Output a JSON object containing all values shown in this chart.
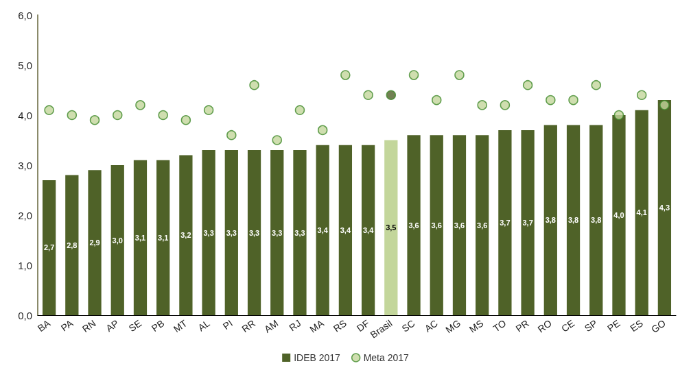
{
  "chart_data": {
    "type": "bar",
    "categories": [
      "BA",
      "PA",
      "RN",
      "AP",
      "SE",
      "PB",
      "MT",
      "AL",
      "PI",
      "RR",
      "AM",
      "RJ",
      "MA",
      "RS",
      "DF",
      "Brasil",
      "SC",
      "AC",
      "MG",
      "MS",
      "TO",
      "PR",
      "RO",
      "CE",
      "SP",
      "PE",
      "ES",
      "GO"
    ],
    "series": [
      {
        "name": "IDEB 2017",
        "color": "#4f6228",
        "colors": [
          "#4f6228",
          "#4f6228",
          "#4f6228",
          "#4f6228",
          "#4f6228",
          "#4f6228",
          "#4f6228",
          "#4f6228",
          "#4f6228",
          "#4f6228",
          "#4f6228",
          "#4f6228",
          "#4f6228",
          "#4f6228",
          "#4f6228",
          "#c3d69b",
          "#4f6228",
          "#4f6228",
          "#4f6228",
          "#4f6228",
          "#4f6228",
          "#4f6228",
          "#4f6228",
          "#4f6228",
          "#4f6228",
          "#4f6228",
          "#4f6228",
          "#4f6228"
        ],
        "values": [
          2.7,
          2.8,
          2.9,
          3.0,
          3.1,
          3.1,
          3.2,
          3.3,
          3.3,
          3.3,
          3.3,
          3.3,
          3.4,
          3.4,
          3.4,
          3.5,
          3.6,
          3.6,
          3.6,
          3.6,
          3.7,
          3.7,
          3.8,
          3.8,
          3.8,
          4.0,
          4.1,
          4.3
        ],
        "value_labels": [
          "2,7",
          "2,8",
          "2,9",
          "3,0",
          "3,1",
          "3,1",
          "3,2",
          "3,3",
          "3,3",
          "3,3",
          "3,3",
          "3,3",
          "3,4",
          "3,4",
          "3,4",
          "3,5",
          "3,6",
          "3,6",
          "3,6",
          "3,6",
          "3,7",
          "3,7",
          "3,8",
          "3,8",
          "3,8",
          "4,0",
          "4,1",
          "4,3"
        ]
      },
      {
        "name": "Meta 2017",
        "type": "scatter",
        "color": "#c3d69b",
        "colors": [
          "#c3d69b",
          "#c3d69b",
          "#c3d69b",
          "#c3d69b",
          "#c3d69b",
          "#c3d69b",
          "#c3d69b",
          "#c3d69b",
          "#c3d69b",
          "#c3d69b",
          "#c3d69b",
          "#c3d69b",
          "#c3d69b",
          "#c3d69b",
          "#c3d69b",
          "#4f6228",
          "#c3d69b",
          "#c3d69b",
          "#c3d69b",
          "#c3d69b",
          "#c3d69b",
          "#c3d69b",
          "#c3d69b",
          "#c3d69b",
          "#c3d69b",
          "#c3d69b",
          "#c3d69b",
          "#c3d69b"
        ],
        "marker": "circle",
        "values": [
          4.1,
          4.0,
          3.9,
          4.0,
          4.2,
          4.0,
          3.9,
          4.1,
          3.6,
          4.6,
          3.5,
          4.1,
          3.7,
          4.8,
          4.4,
          4.4,
          4.8,
          4.3,
          4.8,
          4.2,
          4.2,
          4.6,
          4.3,
          4.3,
          4.6,
          4.0,
          4.4,
          4.2
        ]
      }
    ],
    "ylim": [
      0,
      6
    ],
    "yticks": [
      {
        "value": 0,
        "label": "0,0"
      },
      {
        "value": 1,
        "label": "1,0"
      },
      {
        "value": 2,
        "label": "2,0"
      },
      {
        "value": 3,
        "label": "3,0"
      },
      {
        "value": 4,
        "label": "4,0"
      },
      {
        "value": 5,
        "label": "5,0"
      },
      {
        "value": 6,
        "label": "6,0"
      }
    ],
    "grid": false,
    "legend": "bottom"
  }
}
